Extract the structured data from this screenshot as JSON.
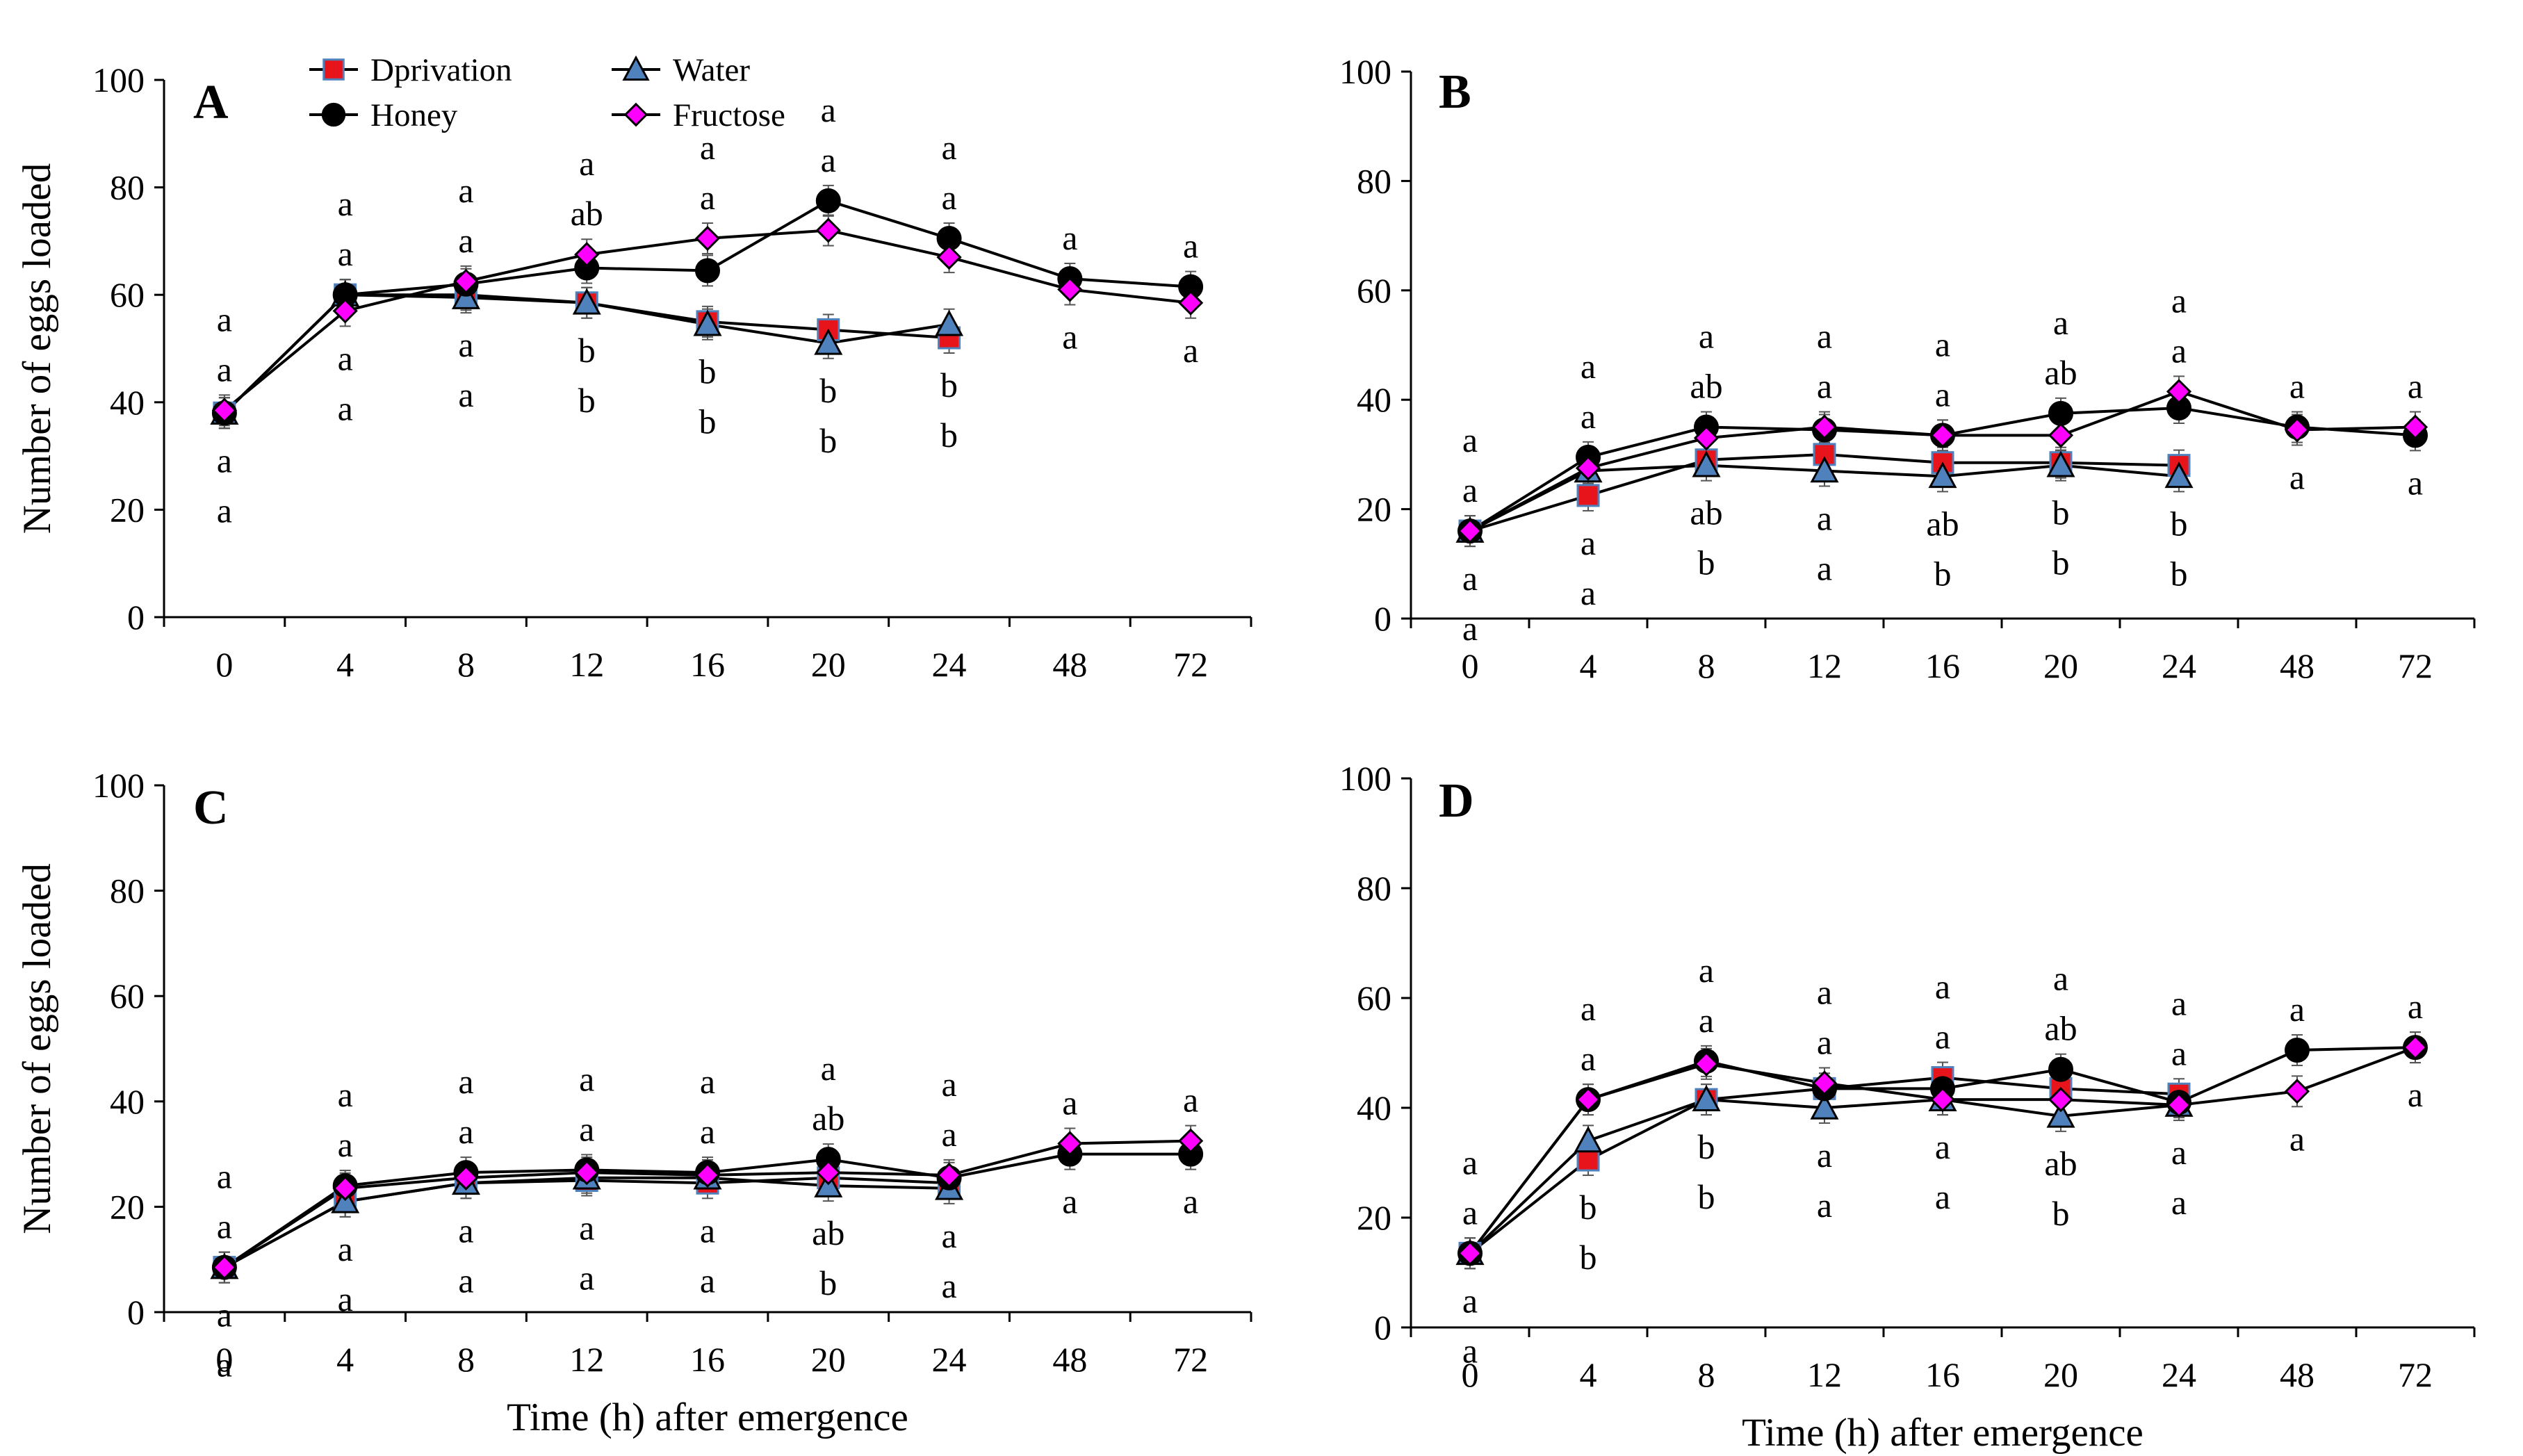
{
  "chart_data": [
    {
      "panel": "A",
      "type": "line",
      "title": "",
      "xlabel": "",
      "ylabel": "Number of eggs loaded",
      "categories": [
        "0",
        "4",
        "8",
        "12",
        "16",
        "20",
        "24",
        "48",
        "72"
      ],
      "ylim": [
        0,
        100
      ],
      "yticks": [
        0,
        20,
        40,
        60,
        80,
        100
      ],
      "series": [
        {
          "name": "Dprivation",
          "color": "#e8141b",
          "values": [
            38,
            60,
            60,
            58.5,
            55,
            53.5,
            52,
            null,
            null
          ]
        },
        {
          "name": "Water",
          "color": "#4f81bd",
          "values": [
            38,
            60,
            59.5,
            58.5,
            54.5,
            51,
            54.5,
            null,
            null
          ]
        },
        {
          "name": "Honey",
          "color": "#000000",
          "values": [
            38,
            60,
            62,
            65,
            64.5,
            77.5,
            70.5,
            63,
            61.5
          ]
        },
        {
          "name": "Fructose",
          "color": "#ff00ff",
          "values": [
            38.5,
            57,
            62.5,
            67.5,
            70.5,
            72,
            67,
            61,
            58.5
          ]
        }
      ],
      "letters": [
        {
          "x": "0",
          "labels": [
            "a",
            "a",
            "a",
            "a"
          ]
        },
        {
          "x": "4",
          "labels": [
            "a",
            "a",
            "a",
            "a"
          ]
        },
        {
          "x": "8",
          "labels": [
            "a",
            "a",
            "a",
            "a"
          ]
        },
        {
          "x": "12",
          "labels": [
            "a",
            "ab",
            "b",
            "b"
          ]
        },
        {
          "x": "16",
          "labels": [
            "a",
            "a",
            "b",
            "b"
          ]
        },
        {
          "x": "20",
          "labels": [
            "a",
            "a",
            "b",
            "b"
          ]
        },
        {
          "x": "24",
          "labels": [
            "a",
            "a",
            "b",
            "b"
          ]
        },
        {
          "x": "48",
          "labels": [
            "a",
            "a"
          ]
        },
        {
          "x": "72",
          "labels": [
            "a",
            "a"
          ]
        }
      ]
    },
    {
      "panel": "B",
      "type": "line",
      "title": "",
      "xlabel": "",
      "ylabel": "",
      "categories": [
        "0",
        "4",
        "8",
        "12",
        "16",
        "20",
        "24",
        "48",
        "72"
      ],
      "ylim": [
        0,
        100
      ],
      "yticks": [
        0,
        20,
        40,
        60,
        80,
        100
      ],
      "series": [
        {
          "name": "Dprivation",
          "color": "#e8141b",
          "values": [
            16,
            22.5,
            29,
            30,
            28.5,
            28.5,
            28,
            null,
            null
          ]
        },
        {
          "name": "Water",
          "color": "#4f81bd",
          "values": [
            16,
            27,
            28,
            27,
            26,
            28,
            26,
            null,
            null
          ]
        },
        {
          "name": "Honey",
          "color": "#000000",
          "values": [
            16,
            29.5,
            35,
            34.5,
            33.5,
            37.5,
            38.5,
            35,
            33.5
          ]
        },
        {
          "name": "Fructose",
          "color": "#ff00ff",
          "values": [
            16,
            27.5,
            33,
            35,
            33.5,
            33.5,
            41.5,
            34.5,
            35
          ]
        }
      ],
      "letters": [
        {
          "x": "0",
          "labels": [
            "a",
            "a",
            "a",
            "a"
          ]
        },
        {
          "x": "4",
          "labels": [
            "a",
            "a",
            "a",
            "a"
          ]
        },
        {
          "x": "8",
          "labels": [
            "a",
            "ab",
            "ab",
            "b"
          ]
        },
        {
          "x": "12",
          "labels": [
            "a",
            "a",
            "a",
            "a"
          ]
        },
        {
          "x": "16",
          "labels": [
            "a",
            "a",
            "ab",
            "b"
          ]
        },
        {
          "x": "20",
          "labels": [
            "a",
            "ab",
            "b",
            "b"
          ]
        },
        {
          "x": "24",
          "labels": [
            "a",
            "a",
            "b",
            "b"
          ]
        },
        {
          "x": "48",
          "labels": [
            "a",
            "a"
          ]
        },
        {
          "x": "72",
          "labels": [
            "a",
            "a"
          ]
        }
      ]
    },
    {
      "panel": "C",
      "type": "line",
      "title": "",
      "xlabel": "Time (h) after emergence",
      "ylabel": "Number of eggs loaded",
      "categories": [
        "0",
        "4",
        "8",
        "12",
        "16",
        "20",
        "24",
        "48",
        "72"
      ],
      "ylim": [
        0,
        100
      ],
      "yticks": [
        0,
        20,
        40,
        60,
        80,
        100
      ],
      "series": [
        {
          "name": "Dprivation",
          "color": "#e8141b",
          "values": [
            8.5,
            21,
            24.5,
            25,
            24.5,
            25.5,
            24.5,
            null,
            null
          ]
        },
        {
          "name": "Water",
          "color": "#4f81bd",
          "values": [
            8.5,
            21,
            24.5,
            25.5,
            25.5,
            24,
            23.5,
            null,
            null
          ]
        },
        {
          "name": "Honey",
          "color": "#000000",
          "values": [
            8.5,
            24,
            26.5,
            27,
            26.5,
            29,
            25.5,
            30,
            30
          ]
        },
        {
          "name": "Fructose",
          "color": "#ff00ff",
          "values": [
            8.5,
            23.5,
            25.5,
            26.5,
            26,
            26.5,
            26,
            32,
            32.5
          ]
        }
      ],
      "letters": [
        {
          "x": "0",
          "labels": [
            "a",
            "a",
            "a",
            "a"
          ]
        },
        {
          "x": "4",
          "labels": [
            "a",
            "a",
            "a",
            "a"
          ]
        },
        {
          "x": "8",
          "labels": [
            "a",
            "a",
            "a",
            "a"
          ]
        },
        {
          "x": "12",
          "labels": [
            "a",
            "a",
            "a",
            "a"
          ]
        },
        {
          "x": "16",
          "labels": [
            "a",
            "a",
            "a",
            "a"
          ]
        },
        {
          "x": "20",
          "labels": [
            "a",
            "ab",
            "ab",
            "b"
          ]
        },
        {
          "x": "24",
          "labels": [
            "a",
            "a",
            "a",
            "a"
          ]
        },
        {
          "x": "48",
          "labels": [
            "a",
            "a"
          ]
        },
        {
          "x": "72",
          "labels": [
            "a",
            "a"
          ]
        }
      ]
    },
    {
      "panel": "D",
      "type": "line",
      "title": "",
      "xlabel": "Time (h) after emergence",
      "ylabel": "",
      "categories": [
        "0",
        "4",
        "8",
        "12",
        "16",
        "20",
        "24",
        "48",
        "72"
      ],
      "ylim": [
        0,
        100
      ],
      "yticks": [
        0,
        20,
        40,
        60,
        80,
        100
      ],
      "series": [
        {
          "name": "Dprivation",
          "color": "#e8141b",
          "values": [
            13.5,
            30.5,
            41.5,
            43.5,
            45.5,
            43.5,
            42.5,
            null,
            null
          ]
        },
        {
          "name": "Water",
          "color": "#4f81bd",
          "values": [
            13.5,
            34,
            41.5,
            40,
            41.5,
            38.5,
            40.5,
            null,
            null
          ]
        },
        {
          "name": "Honey",
          "color": "#000000",
          "values": [
            13.5,
            41.5,
            48.5,
            43.5,
            43.5,
            47,
            41,
            50.5,
            51
          ]
        },
        {
          "name": "Fructose",
          "color": "#ff00ff",
          "values": [
            13.5,
            41.5,
            48,
            44.5,
            41.5,
            41.5,
            40.5,
            43,
            51
          ]
        }
      ],
      "letters": [
        {
          "x": "0",
          "labels": [
            "a",
            "a",
            "a",
            "a"
          ]
        },
        {
          "x": "4",
          "labels": [
            "a",
            "a",
            "b",
            "b"
          ]
        },
        {
          "x": "8",
          "labels": [
            "a",
            "a",
            "b",
            "b"
          ]
        },
        {
          "x": "12",
          "labels": [
            "a",
            "a",
            "a",
            "a"
          ]
        },
        {
          "x": "16",
          "labels": [
            "a",
            "a",
            "a",
            "a"
          ]
        },
        {
          "x": "20",
          "labels": [
            "a",
            "ab",
            "ab",
            "b"
          ]
        },
        {
          "x": "24",
          "labels": [
            "a",
            "a",
            "a",
            "a"
          ]
        },
        {
          "x": "48",
          "labels": [
            "a",
            "a"
          ]
        },
        {
          "x": "72",
          "labels": [
            "a",
            "a"
          ]
        }
      ]
    }
  ],
  "legend": {
    "items": [
      {
        "name": "Dprivation",
        "marker": "square",
        "fill": "#e8141b",
        "stroke": "#4f81bd"
      },
      {
        "name": "Water",
        "marker": "triangle",
        "fill": "#4f81bd",
        "stroke": "#000000"
      },
      {
        "name": "Honey",
        "marker": "circle",
        "fill": "#000000",
        "stroke": "#000000"
      },
      {
        "name": "Fructose",
        "marker": "diamond",
        "fill": "#ff00ff",
        "stroke": "#000000"
      }
    ]
  }
}
